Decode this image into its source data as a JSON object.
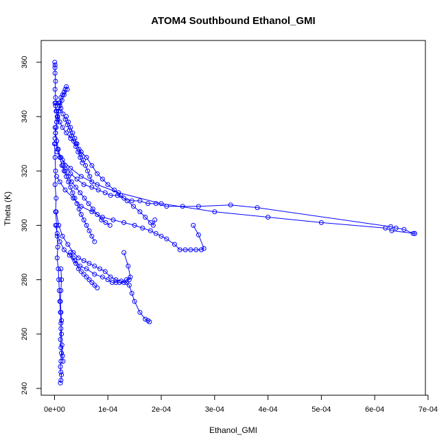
{
  "chart_data": {
    "type": "line",
    "title": "ATOM4 Southbound Ethanol_GMI",
    "xlabel": "Ethanol_GMI",
    "ylabel": "Theta (K)",
    "xlim": [
      -2.5e-05,
      0.000695
    ],
    "ylim": [
      237.5,
      368
    ],
    "x_ticks": [
      0,
      0.0001,
      0.0002,
      0.0003,
      0.0004,
      0.0005,
      0.0006,
      0.0007
    ],
    "x_tick_labels": [
      "0e+00",
      "1e-04",
      "2e-04",
      "3e-04",
      "4e-04",
      "5e-04",
      "6e-04",
      "7e-04"
    ],
    "y_ticks": [
      240,
      260,
      280,
      300,
      320,
      340,
      360
    ],
    "y_tick_labels": [
      "240",
      "260",
      "280",
      "300",
      "320",
      "340",
      "360"
    ],
    "grid": false,
    "marker": "open-circle",
    "series_color": "#0000ff",
    "series": [
      {
        "x": [
          5e-07,
          1e-06,
          8e-07,
          1e-06,
          2e-06,
          1e-06,
          2e-06,
          3e-06,
          2e-06,
          4e-06,
          5e-06,
          6e-06,
          4e-06,
          8e-06,
          1e-05,
          1.2e-05,
          1.5e-05,
          1.8e-05,
          2e-05,
          2.2e-05,
          2.4e-05,
          1.8e-05,
          1.4e-05,
          1e-05,
          8e-06,
          6e-06,
          4e-06,
          3e-06,
          2e-06,
          1e-06
        ],
        "y": [
          360,
          359,
          358,
          356,
          353,
          350,
          347,
          345,
          344,
          342,
          340,
          339,
          338,
          342,
          345,
          347,
          348,
          349,
          350,
          351,
          350,
          348,
          346,
          344,
          342,
          340,
          338,
          336,
          334,
          332
        ]
      },
      {
        "x": [
          2e-06,
          6e-06,
          1.2e-05,
          2e-05,
          3e-05,
          4.2e-05,
          5.5e-05,
          7e-05,
          8.2e-05,
          9.5e-05,
          0.000105,
          0.000118,
          0.00013,
          0.000145,
          0.00016,
          0.000175,
          0.00019,
          0.00021,
          0.00024,
          0.00027,
          0.00033,
          0.00038,
          0.00063,
          0.00064,
          0.000655,
          0.000672,
          0.000675
        ],
        "y": [
          330,
          328,
          325,
          322,
          319,
          317,
          315,
          314,
          313,
          312,
          311,
          311,
          310,
          309,
          309,
          308,
          308,
          307,
          307,
          307,
          307.5,
          306.5,
          299.5,
          299,
          298.5,
          297,
          297
        ]
      },
      {
        "x": [
          0.000675,
          0.000632,
          0.00062,
          0.0005,
          0.0004,
          0.0003,
          0.0002,
          0.00012,
          8e-05,
          5e-05,
          3e-05,
          1.5e-05,
          5e-06
        ],
        "y": [
          297,
          298,
          299,
          301,
          303,
          305,
          308,
          312,
          315,
          318,
          321,
          324,
          327
        ]
      },
      {
        "x": [
          4e-06,
          1e-05,
          2e-05,
          3.5e-05,
          5e-05,
          7e-05,
          9e-05,
          0.00011,
          0.00013,
          0.00015,
          0.000165,
          0.00018,
          0.00019,
          0.0002,
          0.00021,
          0.000225,
          0.000235,
          0.000245,
          0.000255,
          0.000265,
          0.000275,
          0.00028,
          0.00027,
          0.00026
        ],
        "y": [
          318,
          316,
          313,
          310,
          307,
          305,
          303,
          302,
          301,
          300,
          299,
          298,
          297,
          296,
          295,
          293,
          291,
          291,
          291,
          291,
          291,
          291.5,
          296.5,
          300
        ]
      },
      {
        "x": [
          3e-06,
          8e-06,
          1.5e-05,
          2.5e-05,
          3.5e-05,
          4.5e-05,
          5.5e-05,
          6.5e-05,
          7.5e-05,
          8.5e-05,
          9.5e-05,
          0.000105,
          0.000115,
          0.000125,
          0.000135,
          0.00014,
          0.000145,
          0.00015,
          0.00016,
          0.00017,
          0.000175,
          0.000178
        ],
        "y": [
          305,
          300,
          296,
          293,
          290,
          288,
          287,
          286,
          285,
          284,
          283,
          281,
          280,
          279.5,
          279,
          278,
          275,
          272,
          268,
          265.5,
          265,
          264.5
        ]
      },
      {
        "x": [
          2e-06,
          5e-06,
          1e-05,
          1.8e-05,
          2.8e-05,
          3.8e-05,
          4.8e-05,
          6e-05,
          7.5e-05,
          9e-05,
          0.0001,
          0.000108,
          0.000115,
          0.000122,
          0.00013,
          0.000135,
          0.00014,
          0.000142,
          0.000138,
          0.00013
        ],
        "y": [
          300,
          297,
          294,
          291,
          289,
          287,
          285,
          284,
          282,
          281,
          280,
          279,
          279,
          279,
          279,
          280,
          280,
          281,
          285,
          290
        ]
      },
      {
        "x": [
          1e-06,
          3e-06,
          6e-06,
          1e-05,
          1.5e-05,
          2.2e-05,
          3e-05,
          4e-05,
          5e-05,
          6e-05,
          7e-05,
          8e-05,
          9e-05,
          0.0001,
          0.000112,
          0.000124,
          0.000136,
          0.000148,
          0.00016,
          0.00017,
          0.00018,
          0.000185,
          0.000188
        ],
        "y": [
          345,
          342,
          340,
          338,
          336,
          334,
          332,
          330,
          327,
          325,
          322,
          319,
          317,
          315,
          313,
          311,
          309,
          307,
          305,
          303,
          301,
          300,
          302
        ]
      },
      {
        "x": [
          1e-06,
          2e-06,
          4e-06,
          7e-06,
          1e-05,
          1.4e-05,
          1.8e-05,
          2.2e-05,
          2.6e-05,
          3e-05,
          3.4e-05,
          3.8e-05,
          4.2e-05,
          4.6e-05,
          5e-05,
          5.5e-05,
          6e-05,
          6.5e-05,
          7e-05,
          7.5e-05
        ],
        "y": [
          336,
          334,
          331,
          328,
          325,
          322,
          320,
          318,
          316,
          314,
          312,
          310,
          308,
          306,
          304,
          302,
          300,
          298,
          296,
          294
        ]
      },
      {
        "x": [
          0.0,
          1e-06,
          2e-06,
          1e-06,
          3e-06,
          2e-06,
          4e-06,
          5e-06,
          6e-06,
          5e-06,
          7e-06,
          8e-06,
          9e-06,
          1e-05,
          1.1e-05,
          1.2e-05,
          1.3e-05,
          1.4e-05,
          1.5e-05,
          1.6e-05
        ],
        "y": [
          330,
          325,
          320,
          315,
          310,
          305,
          300,
          296,
          292,
          288,
          284,
          280,
          276,
          272,
          268,
          264,
          260,
          256,
          252,
          250
        ]
      },
      {
        "x": [
          1.2e-05,
          1.3e-05,
          1.2e-05,
          1.1e-05,
          1.2e-05,
          1.3e-05,
          1.2e-05,
          1.1e-05,
          1.2e-05,
          1.3e-05,
          1.2e-05,
          1.1e-05,
          1.2e-05,
          1.3e-05,
          1.2e-05,
          1.1e-05
        ],
        "y": [
          284,
          280,
          276,
          272,
          268,
          265,
          262,
          258,
          255,
          253,
          250,
          248,
          246,
          245,
          243,
          242
        ]
      },
      {
        "x": [
          1.6e-05,
          2e-05,
          2.6e-05,
          3.2e-05,
          4e-05,
          4.8e-05,
          5.6e-05,
          6.4e-05,
          7.2e-05,
          8e-05,
          8.8e-05,
          9.6e-05,
          0.000104
        ],
        "y": [
          322,
          320,
          318,
          316,
          314,
          312,
          310,
          308,
          306,
          304,
          302,
          301,
          300
        ]
      },
      {
        "x": [
          2.2e-05,
          2.6e-05,
          3e-05,
          3.4e-05,
          3.8e-05,
          4.2e-05,
          4.6e-05,
          5e-05,
          5.4e-05,
          5.8e-05,
          6.2e-05,
          6.6e-05,
          7e-05
        ],
        "y": [
          340,
          338,
          336,
          334,
          332,
          330,
          328,
          326,
          324,
          322,
          320,
          318,
          316
        ]
      },
      {
        "x": [
          3e-05,
          3.5e-05,
          4e-05,
          4.5e-05,
          5e-05,
          5.5e-05,
          6e-05,
          6.5e-05,
          7e-05,
          7.5e-05,
          8e-05
        ],
        "y": [
          290,
          288,
          286,
          284,
          283,
          282,
          281,
          280,
          279,
          278,
          277
        ]
      },
      {
        "x": [
          8e-06,
          1.2e-05,
          1.6e-05,
          2e-05,
          2.4e-05,
          2.8e-05,
          3.2e-05,
          3.6e-05,
          4e-05,
          4.4e-05,
          4.8e-05,
          5.2e-05
        ],
        "y": [
          345,
          343,
          341,
          339,
          337,
          335,
          333,
          331,
          329,
          327,
          325,
          323
        ]
      }
    ]
  }
}
